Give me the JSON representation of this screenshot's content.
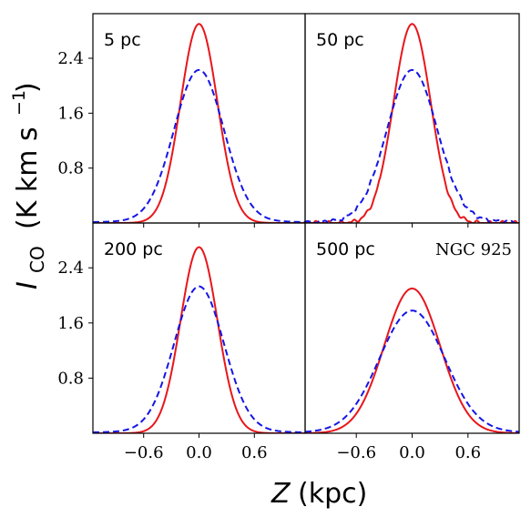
{
  "chart_data": {
    "type": "line",
    "xlabel_var": "Z",
    "xlabel_unit": "(kpc)",
    "ylabel_var": "I",
    "ylabel_sub": "CO",
    "ylabel_unit_pre": "(K km s",
    "ylabel_unit_exp": "−1",
    "ylabel_unit_post": ")",
    "xlim": [
      -1.15,
      1.15
    ],
    "ylim": [
      0,
      3.05
    ],
    "xticks": [
      -0.6,
      0.0,
      0.6
    ],
    "xtick_labels": [
      "−0.6",
      "0.0",
      "0.6"
    ],
    "yticks": [
      0.8,
      1.6,
      2.4
    ],
    "ytick_labels": [
      "0.8",
      "1.6",
      "2.4"
    ],
    "galaxy": "NGC 925",
    "series_colors": {
      "solid": "#e8161b",
      "dashed": "#1515e6"
    },
    "panels": [
      {
        "label": "5 pc",
        "series": [
          {
            "style": "solid",
            "peak": 2.9,
            "sigma": 0.2,
            "noise": false
          },
          {
            "style": "dashed",
            "peak": 2.2,
            "sigma": 0.27,
            "floor": 0.03,
            "noise": false
          }
        ]
      },
      {
        "label": "50 pc",
        "series": [
          {
            "style": "solid",
            "peak": 2.9,
            "sigma": 0.2,
            "noise": true
          },
          {
            "style": "dashed",
            "peak": 2.2,
            "sigma": 0.27,
            "floor": 0.03,
            "noise": true
          }
        ]
      },
      {
        "label": "200 pc",
        "series": [
          {
            "style": "solid",
            "peak": 2.7,
            "sigma": 0.2,
            "noise": false
          },
          {
            "style": "dashed",
            "peak": 2.1,
            "sigma": 0.27,
            "floor": 0.03,
            "noise": false
          }
        ]
      },
      {
        "label": "500 pc",
        "show_galaxy": true,
        "series": [
          {
            "style": "solid",
            "peak": 2.1,
            "sigma": 0.3,
            "noise": false
          },
          {
            "style": "dashed",
            "peak": 1.75,
            "sigma": 0.35,
            "floor": 0.03,
            "noise": false
          }
        ]
      }
    ]
  }
}
